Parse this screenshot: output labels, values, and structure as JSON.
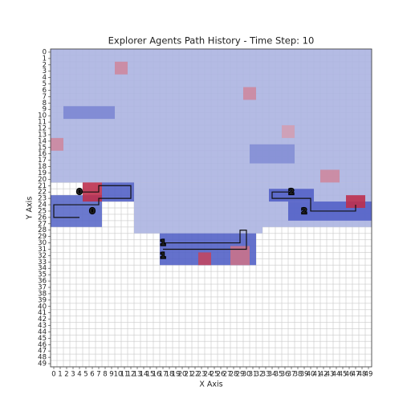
{
  "chart_data": {
    "type": "heatmap",
    "title": "Explorer Agents Path History - Time Step: 10",
    "x_label": "X Axis",
    "y_label": "Y Axis",
    "xlim": [
      -0.5,
      49.5
    ],
    "ylim": [
      49.5,
      -0.5
    ],
    "xticks": [
      0,
      1,
      2,
      3,
      4,
      5,
      6,
      7,
      8,
      9,
      10,
      11,
      12,
      13,
      14,
      15,
      16,
      17,
      18,
      19,
      20,
      21,
      22,
      23,
      24,
      25,
      26,
      27,
      28,
      29,
      30,
      31,
      32,
      33,
      34,
      35,
      36,
      37,
      38,
      39,
      40,
      41,
      42,
      43,
      44,
      45,
      46,
      47,
      48,
      49
    ],
    "yticks": [
      0,
      1,
      2,
      3,
      4,
      5,
      6,
      7,
      8,
      9,
      10,
      11,
      12,
      13,
      14,
      15,
      16,
      17,
      18,
      19,
      20,
      21,
      22,
      23,
      24,
      25,
      26,
      27,
      28,
      29,
      30,
      31,
      32,
      33,
      34,
      35,
      36,
      37,
      38,
      39,
      40,
      41,
      42,
      43,
      44,
      45,
      46,
      47,
      48,
      49
    ],
    "clim": [
      -1,
      1
    ],
    "colors": [
      "#3b4cc0",
      "#dde0ef",
      "#b40426"
    ],
    "regions": [
      {
        "rows": [
          0,
          20
        ],
        "cols": [
          0,
          49
        ],
        "value": -0.3
      },
      {
        "rows": [
          21,
          28
        ],
        "cols": [
          13,
          32
        ],
        "value": -0.3
      },
      {
        "rows": [
          21,
          27
        ],
        "cols": [
          33,
          49
        ],
        "value": -0.3
      },
      {
        "rows": [
          23,
          27
        ],
        "cols": [
          0,
          7
        ],
        "value": -0.8
      },
      {
        "rows": [
          21,
          23
        ],
        "cols": [
          8,
          12
        ],
        "value": -0.85
      },
      {
        "rows": [
          21,
          23
        ],
        "cols": [
          5,
          7
        ],
        "value": 0.8
      },
      {
        "rows": [
          29,
          33
        ],
        "cols": [
          17,
          31
        ],
        "value": -0.85
      },
      {
        "rows": [
          32,
          33
        ],
        "cols": [
          23,
          24
        ],
        "value": 0.7
      },
      {
        "rows": [
          31,
          33
        ],
        "cols": [
          28,
          30
        ],
        "value": 0.5
      },
      {
        "rows": [
          22,
          23
        ],
        "cols": [
          34,
          40
        ],
        "value": -0.85
      },
      {
        "rows": [
          24,
          26
        ],
        "cols": [
          37,
          49
        ],
        "value": -0.85
      },
      {
        "rows": [
          23,
          24
        ],
        "cols": [
          46,
          48
        ],
        "value": 0.8
      },
      {
        "rows": [
          2,
          3
        ],
        "cols": [
          10,
          11
        ],
        "value": 0.4
      },
      {
        "rows": [
          6,
          7
        ],
        "cols": [
          30,
          31
        ],
        "value": 0.4
      },
      {
        "rows": [
          14,
          15
        ],
        "cols": [
          0,
          1
        ],
        "value": 0.4
      },
      {
        "rows": [
          19,
          20
        ],
        "cols": [
          42,
          44
        ],
        "value": 0.4
      },
      {
        "rows": [
          12,
          13
        ],
        "cols": [
          36,
          37
        ],
        "value": 0.3
      },
      {
        "rows": [
          9,
          10
        ],
        "cols": [
          2,
          9
        ],
        "value": -0.6
      },
      {
        "rows": [
          15,
          17
        ],
        "cols": [
          31,
          37
        ],
        "value": -0.55
      }
    ],
    "agents": [
      {
        "name": "0",
        "path_x": [
          4,
          7,
          7,
          12,
          12,
          7,
          7,
          0,
          0,
          4
        ],
        "path_y": [
          22,
          22,
          21,
          21,
          23,
          23,
          24,
          24,
          26,
          26
        ],
        "start": [
          6,
          25
        ]
      },
      {
        "name": "1",
        "path_x": [
          17,
          29,
          29,
          30,
          30,
          17
        ],
        "path_y": [
          30,
          30,
          28,
          28,
          31,
          31
        ],
        "start": [
          17,
          32
        ]
      },
      {
        "name": "2",
        "path_x": [
          37,
          34,
          34,
          40,
          40,
          47,
          47
        ],
        "path_y": [
          22,
          22,
          23,
          23,
          25,
          25,
          24
        ],
        "start": [
          39,
          25
        ]
      }
    ]
  }
}
